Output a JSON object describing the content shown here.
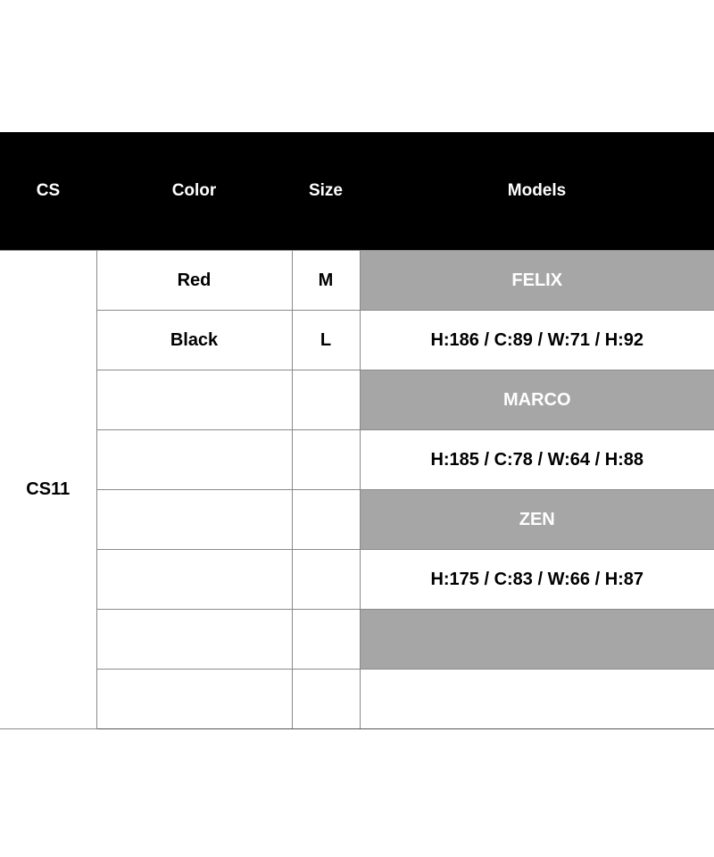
{
  "headers": [
    "CS",
    "Color",
    "Size",
    "Models"
  ],
  "cs": "CS11",
  "rows": [
    {
      "color": "Red",
      "size": "M",
      "model": "FELIX",
      "shaded": true
    },
    {
      "color": "Black",
      "size": "L",
      "model": "H:186 / C:89 / W:71 / H:92",
      "shaded": false
    },
    {
      "color": "",
      "size": "",
      "model": "MARCO",
      "shaded": true
    },
    {
      "color": "",
      "size": "",
      "model": "H:185 / C:78 / W:64 / H:88",
      "shaded": false
    },
    {
      "color": "",
      "size": "",
      "model": "ZEN",
      "shaded": true
    },
    {
      "color": "",
      "size": "",
      "model": "H:175 / C:83 / W:66 / H:87",
      "shaded": false
    },
    {
      "color": "",
      "size": "",
      "model": "",
      "shaded": true
    },
    {
      "color": "",
      "size": "",
      "model": "",
      "shaded": false
    }
  ],
  "colors": {
    "header_bg": "#000000",
    "shaded_bg": "#a6a6a6",
    "border": "#8a8a8a"
  }
}
